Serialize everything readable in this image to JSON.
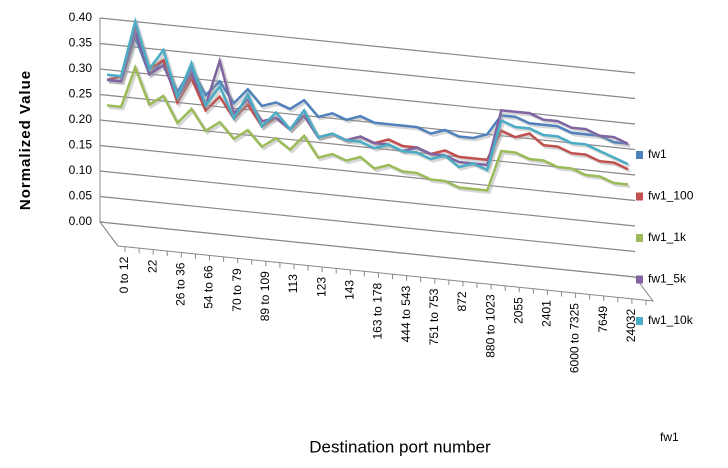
{
  "chart_data": {
    "type": "line3d",
    "y_label": "Normalized Value",
    "x_label": "Destination port number",
    "z_categories": [
      "fw1"
    ],
    "categories": [
      "0 to 12",
      null,
      "22",
      null,
      "26 to 36",
      null,
      "54 to 66",
      null,
      "70 to 79",
      null,
      "89 to 109",
      null,
      "113",
      null,
      "123",
      null,
      "143",
      null,
      "163 to 178",
      null,
      "444 to 543",
      null,
      "751 to 753",
      null,
      "872",
      null,
      "880 to 1023",
      null,
      "2055",
      null,
      "2401",
      null,
      "6000 to  7325",
      null,
      "7649",
      null,
      "24032",
      null
    ],
    "series": [
      {
        "name": "fw1",
        "color": "#4f81bd",
        "values": [
          0.28,
          0.28,
          0.37,
          0.3,
          0.33,
          0.27,
          0.32,
          0.27,
          0.3,
          0.26,
          0.29,
          0.26,
          0.27,
          0.26,
          0.28,
          0.25,
          0.26,
          0.25,
          0.26,
          0.25,
          0.25,
          0.25,
          0.25,
          0.24,
          0.25,
          0.24,
          0.24,
          0.25,
          0.29,
          0.29,
          0.28,
          0.28,
          0.28,
          0.27,
          0.27,
          0.27,
          0.26,
          0.26
        ]
      },
      {
        "name": "fw1_100",
        "color": "#c0504d",
        "values": [
          0.28,
          0.29,
          0.39,
          0.31,
          0.33,
          0.25,
          0.3,
          0.24,
          0.27,
          0.23,
          0.26,
          0.22,
          0.24,
          0.22,
          0.25,
          0.21,
          0.22,
          0.21,
          0.22,
          0.21,
          0.22,
          0.21,
          0.21,
          0.2,
          0.21,
          0.2,
          0.2,
          0.2,
          0.26,
          0.25,
          0.26,
          0.24,
          0.24,
          0.23,
          0.23,
          0.22,
          0.22,
          0.21
        ]
      },
      {
        "name": "fw1_1k",
        "color": "#9bbb59",
        "values": [
          0.23,
          0.23,
          0.31,
          0.24,
          0.26,
          0.21,
          0.24,
          0.2,
          0.22,
          0.19,
          0.21,
          0.18,
          0.2,
          0.18,
          0.21,
          0.17,
          0.18,
          0.17,
          0.18,
          0.16,
          0.17,
          0.16,
          0.16,
          0.15,
          0.15,
          0.14,
          0.14,
          0.14,
          0.22,
          0.22,
          0.21,
          0.21,
          0.2,
          0.2,
          0.19,
          0.19,
          0.18,
          0.18
        ]
      },
      {
        "name": "fw1_5k",
        "color": "#8064a2",
        "values": [
          0.28,
          0.28,
          0.38,
          0.3,
          0.32,
          0.26,
          0.31,
          0.25,
          0.34,
          0.24,
          0.27,
          0.23,
          0.24,
          0.22,
          0.25,
          0.21,
          0.22,
          0.21,
          0.22,
          0.21,
          0.21,
          0.2,
          0.21,
          0.2,
          0.2,
          0.19,
          0.19,
          0.19,
          0.3,
          0.3,
          0.3,
          0.29,
          0.29,
          0.28,
          0.28,
          0.27,
          0.27,
          0.26
        ]
      },
      {
        "name": "fw1_10k",
        "color": "#4bacc6",
        "values": [
          0.29,
          0.29,
          0.4,
          0.31,
          0.35,
          0.26,
          0.33,
          0.25,
          0.29,
          0.23,
          0.28,
          0.22,
          0.25,
          0.22,
          0.26,
          0.21,
          0.22,
          0.21,
          0.21,
          0.2,
          0.21,
          0.2,
          0.2,
          0.19,
          0.2,
          0.18,
          0.19,
          0.18,
          0.28,
          0.27,
          0.27,
          0.26,
          0.26,
          0.25,
          0.25,
          0.24,
          0.23,
          0.22
        ]
      }
    ],
    "ylim": [
      0,
      0.4
    ],
    "yticks": [
      {
        "value": 0,
        "label": "0.00"
      },
      {
        "value": 0.05,
        "label": "0.05"
      },
      {
        "value": 0.1,
        "label": "0.10"
      },
      {
        "value": 0.15,
        "label": "0.15"
      },
      {
        "value": 0.2,
        "label": "0.20"
      },
      {
        "value": 0.25,
        "label": "0.25"
      },
      {
        "value": 0.3,
        "label": "0.30"
      },
      {
        "value": 0.35,
        "label": "0.35"
      },
      {
        "value": 0.4,
        "label": "0.40"
      }
    ],
    "grid": true
  }
}
